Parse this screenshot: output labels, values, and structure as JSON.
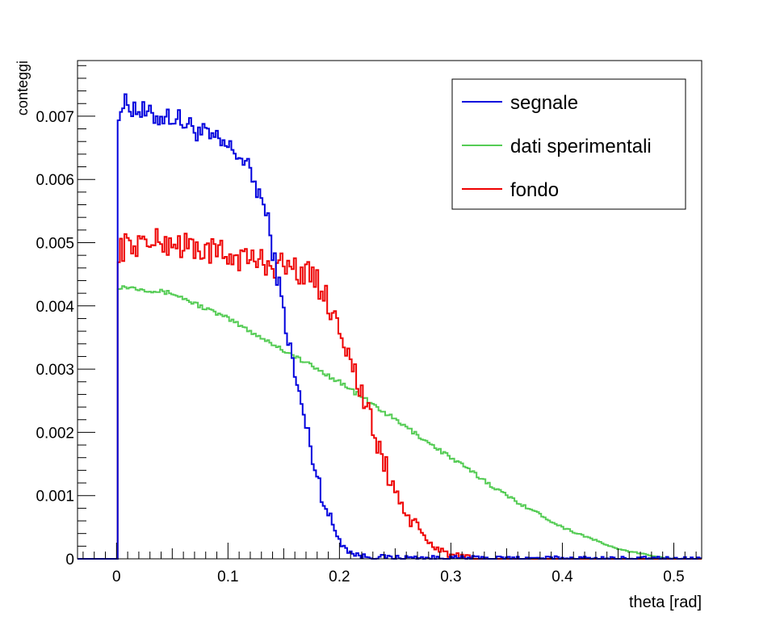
{
  "chart_data": {
    "type": "line",
    "xlabel": "theta [rad]",
    "ylabel": "conteggi",
    "xlim": [
      -0.035,
      0.525
    ],
    "ylim": [
      0,
      0.00788
    ],
    "x_ticks": [
      0,
      0.1,
      0.2,
      0.3,
      0.4,
      0.5
    ],
    "x_tick_labels": [
      "0",
      "0.1",
      "0.2",
      "0.3",
      "0.4",
      "0.5"
    ],
    "y_ticks": [
      0,
      0.001,
      0.002,
      0.003,
      0.004,
      0.005,
      0.006,
      0.007
    ],
    "y_tick_labels": [
      "0",
      "0.001",
      "0.002",
      "0.003",
      "0.004",
      "0.005",
      "0.006",
      "0.007"
    ],
    "legend_position": "top-right",
    "grid": false,
    "series": [
      {
        "name": "segnale",
        "color": "#0000dd",
        "x": [
          -0.035,
          0,
          0.001,
          0.01,
          0.02,
          0.03,
          0.05,
          0.07,
          0.09,
          0.11,
          0.12,
          0.13,
          0.135,
          0.14,
          0.145,
          0.15,
          0.155,
          0.16,
          0.17,
          0.18,
          0.19,
          0.2,
          0.21,
          0.22,
          0.25,
          0.3,
          0.525
        ],
        "y": [
          0,
          0,
          0.0071,
          0.0072,
          0.0071,
          0.007,
          0.007,
          0.0068,
          0.0066,
          0.0064,
          0.0061,
          0.0057,
          0.0054,
          0.0049,
          0.0044,
          0.0039,
          0.0034,
          0.0029,
          0.0021,
          0.0013,
          0.0007,
          0.0003,
          0.0001,
          4e-05,
          2e-05,
          1e-05,
          0
        ],
        "noise": 0.00018
      },
      {
        "name": "dati sperimentali",
        "color": "#55cc55",
        "x": [
          -0.035,
          0,
          0.001,
          0.01,
          0.05,
          0.1,
          0.15,
          0.2,
          0.25,
          0.3,
          0.35,
          0.4,
          0.45,
          0.49,
          0.5,
          0.525
        ],
        "y": [
          0,
          0,
          0.0043,
          0.0043,
          0.0042,
          0.0038,
          0.0033,
          0.0028,
          0.0022,
          0.0016,
          0.001,
          0.0005,
          0.00015,
          2e-05,
          0,
          0
        ],
        "noise": 3.5e-05
      },
      {
        "name": "fondo",
        "color": "#ee0000",
        "x": [
          -0.035,
          0,
          0.001,
          0.02,
          0.05,
          0.1,
          0.13,
          0.16,
          0.18,
          0.2,
          0.22,
          0.24,
          0.26,
          0.28,
          0.3,
          0.32,
          0.525
        ],
        "y": [
          0,
          0,
          0.0049,
          0.005,
          0.005,
          0.0048,
          0.0047,
          0.0046,
          0.0044,
          0.0037,
          0.0026,
          0.0015,
          0.0007,
          0.00025,
          6e-05,
          0,
          0
        ],
        "noise": 0.00022
      }
    ]
  }
}
